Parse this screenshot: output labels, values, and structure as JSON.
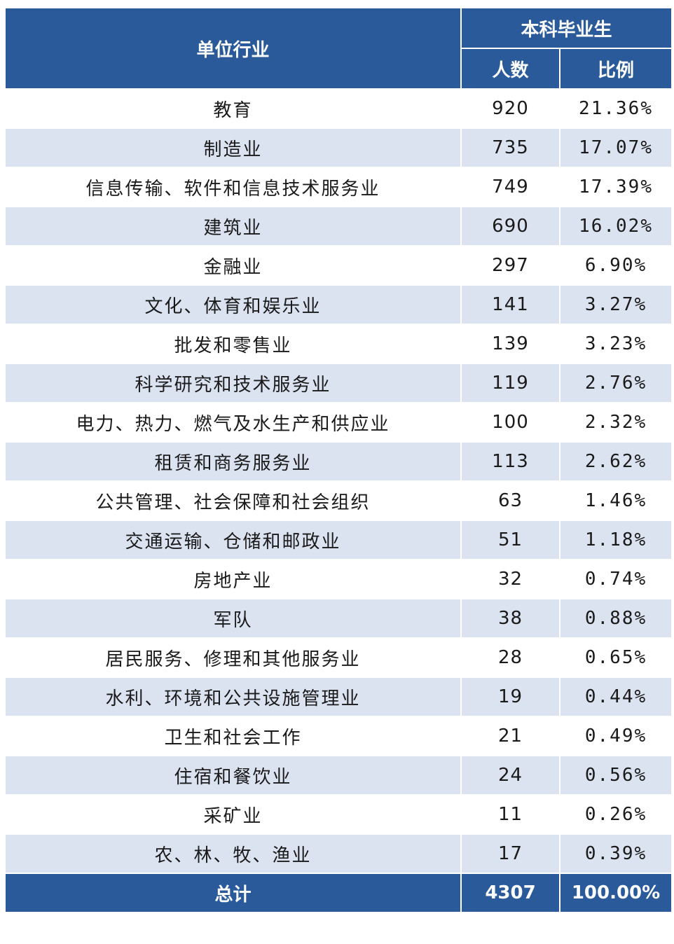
{
  "header": {
    "industry": "单位行业",
    "group": "本科毕业生",
    "count": "人数",
    "ratio": "比例"
  },
  "rows": [
    {
      "industry": "教育",
      "count": "920",
      "ratio": "21.36%"
    },
    {
      "industry": "制造业",
      "count": "735",
      "ratio": "17.07%"
    },
    {
      "industry": "信息传输、软件和信息技术服务业",
      "count": "749",
      "ratio": "17.39%"
    },
    {
      "industry": "建筑业",
      "count": "690",
      "ratio": "16.02%"
    },
    {
      "industry": "金融业",
      "count": "297",
      "ratio": "6.90%"
    },
    {
      "industry": "文化、体育和娱乐业",
      "count": "141",
      "ratio": "3.27%"
    },
    {
      "industry": "批发和零售业",
      "count": "139",
      "ratio": "3.23%"
    },
    {
      "industry": "科学研究和技术服务业",
      "count": "119",
      "ratio": "2.76%"
    },
    {
      "industry": "电力、热力、燃气及水生产和供应业",
      "count": "100",
      "ratio": "2.32%"
    },
    {
      "industry": "租赁和商务服务业",
      "count": "113",
      "ratio": "2.62%"
    },
    {
      "industry": "公共管理、社会保障和社会组织",
      "count": "63",
      "ratio": "1.46%"
    },
    {
      "industry": "交通运输、仓储和邮政业",
      "count": "51",
      "ratio": "1.18%"
    },
    {
      "industry": "房地产业",
      "count": "32",
      "ratio": "0.74%"
    },
    {
      "industry": "军队",
      "count": "38",
      "ratio": "0.88%"
    },
    {
      "industry": "居民服务、修理和其他服务业",
      "count": "28",
      "ratio": "0.65%"
    },
    {
      "industry": "水利、环境和公共设施管理业",
      "count": "19",
      "ratio": "0.44%"
    },
    {
      "industry": "卫生和社会工作",
      "count": "21",
      "ratio": "0.49%"
    },
    {
      "industry": "住宿和餐饮业",
      "count": "24",
      "ratio": "0.56%"
    },
    {
      "industry": "采矿业",
      "count": "11",
      "ratio": "0.26%"
    },
    {
      "industry": "农、林、牧、渔业",
      "count": "17",
      "ratio": "0.39%"
    }
  ],
  "total": {
    "label": "总计",
    "count": "4307",
    "ratio": "100.00%"
  },
  "colors": {
    "header_bg": "#2a5a9a",
    "stripe_bg": "#dbe3f1"
  }
}
